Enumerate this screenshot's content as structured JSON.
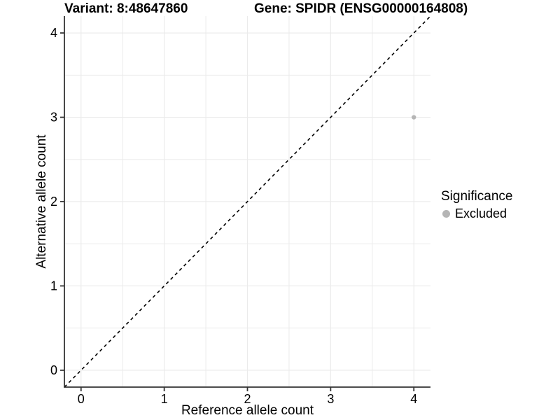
{
  "figure": {
    "background": "#ffffff"
  },
  "chart_data": {
    "type": "scatter",
    "title_variant": "Variant: 8:48647860",
    "title_gene": "Gene: SPIDR (ENSG00000164808)",
    "xlabel": "Reference allele count",
    "ylabel": "Alternative allele count",
    "xlim": [
      -0.2,
      4.2
    ],
    "ylim": [
      -0.2,
      4.2
    ],
    "x_ticks": [
      0,
      1,
      2,
      3,
      4
    ],
    "y_ticks": [
      0,
      1,
      2,
      3,
      4
    ],
    "x_minor_gridlines": [
      0.5,
      1.5,
      2.5,
      3.5
    ],
    "y_minor_gridlines": [
      0.5,
      1.5,
      2.5,
      3.5
    ],
    "grid": true,
    "series": [
      {
        "name": "Excluded",
        "points": [
          {
            "x": 4,
            "y": 3
          }
        ]
      }
    ],
    "reference_line": {
      "description": "identity line y = x",
      "style": "dashed",
      "from": [
        -0.2,
        -0.2
      ],
      "to": [
        4.2,
        4.2
      ],
      "color": "#000000"
    },
    "legend": {
      "title": "Significance",
      "position": "right",
      "items": [
        {
          "label": "Excluded",
          "color": "#b5b5b5"
        }
      ]
    },
    "colors": {
      "point": "#b5b5b5",
      "gridline": "#ebebeb",
      "axis_line": "#333333",
      "tick_mark": "#333333",
      "text": "#000000"
    }
  }
}
